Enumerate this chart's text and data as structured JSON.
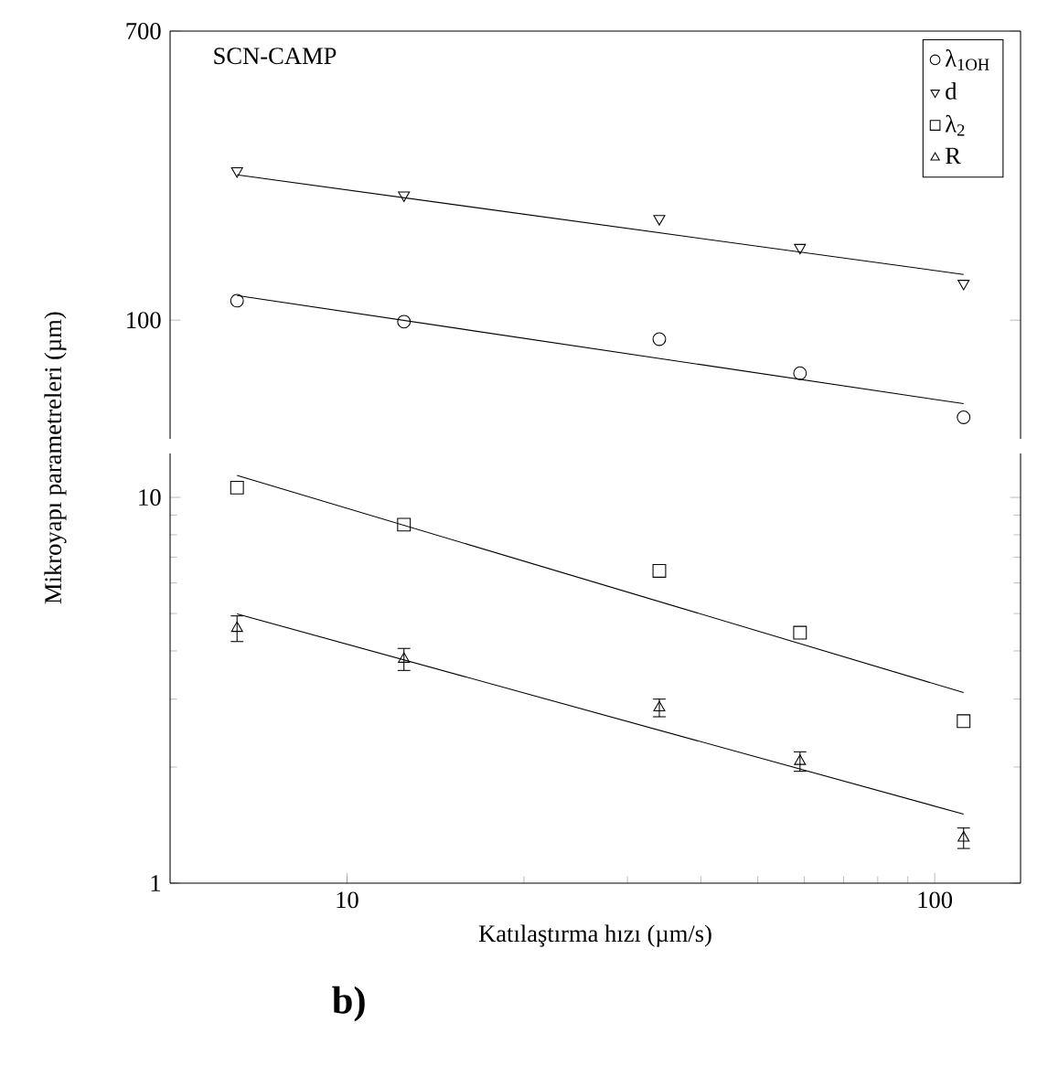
{
  "chart_data": [
    {
      "type": "scatter",
      "log": "xy",
      "xlim": [
        5,
        140
      ],
      "ylim": [
        45,
        700
      ],
      "yticks": [
        100,
        700
      ],
      "tick_labels": "y",
      "legend": "top right",
      "annotations": [
        "SCN-CAMP"
      ],
      "series": [
        {
          "name": "λ$_{1OH}$",
          "marker": "circle",
          "color": "#000000",
          "x": [
            6.5,
            12.5,
            34,
            59,
            112
          ],
          "values": [
            114,
            99,
            88,
            70,
            52
          ]
        },
        {
          "name": "d",
          "marker": "triangle-down",
          "color": "#000000",
          "x": [
            6.5,
            12.5,
            34,
            59,
            112
          ],
          "values": [
            273,
            232,
            198,
            163,
            128
          ]
        },
        {
          "type": "line",
          "color": "#000000",
          "x": [
            6.5,
            112
          ],
          "values": [
            118,
            57
          ]
        },
        {
          "type": "line",
          "color": "#000000",
          "x": [
            6.5,
            112
          ],
          "values": [
            266,
            136
          ]
        }
      ]
    },
    {
      "type": "scatter",
      "log": "xy",
      "xlim": [
        5,
        140
      ],
      "ylim": [
        1,
        13
      ],
      "xticks": [
        10,
        100
      ],
      "yticks": [
        1,
        10
      ],
      "xlabel": "Katılaştırma hızı (µm/s)",
      "ylabel": "Mikroyapı parametreleri (µm)",
      "annotations": [
        "b)"
      ],
      "series": [
        {
          "name": "λ$_{2}$",
          "marker": "square",
          "color": "#000000",
          "x": [
            6.5,
            12.5,
            34,
            59,
            112
          ],
          "values": [
            10.6,
            8.5,
            6.45,
            4.46,
            2.63
          ]
        },
        {
          "name": "R",
          "marker": "triangle",
          "color": "#000000",
          "x": [
            6.5,
            12.5,
            34,
            59,
            112
          ],
          "values": [
            4.58,
            3.81,
            2.85,
            2.07,
            1.31
          ],
          "errors": [
            0.35,
            0.25,
            0.15,
            0.12,
            0.08
          ]
        },
        {
          "type": "line",
          "color": "#000000",
          "x": [
            6.5,
            112
          ],
          "values": [
            11.4,
            3.12
          ]
        },
        {
          "type": "line",
          "color": "#000000",
          "x": [
            6.5,
            112
          ],
          "values": [
            4.99,
            1.51
          ]
        }
      ]
    }
  ]
}
